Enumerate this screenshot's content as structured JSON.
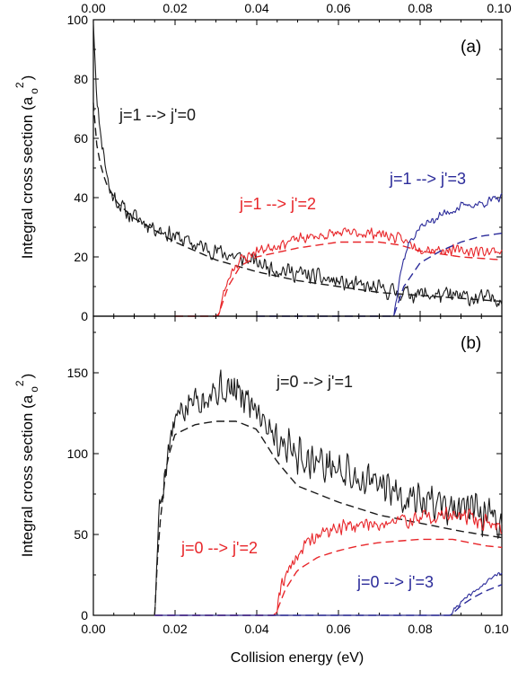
{
  "figure": {
    "xlabel": "Collision energy (eV)",
    "x_ticks": [
      "0.00",
      "0.02",
      "0.04",
      "0.06",
      "0.08",
      "0.10"
    ],
    "top_axis_ticks": [
      "0.00",
      "0.02",
      "0.04",
      "0.06",
      "0.08",
      "0.10"
    ]
  },
  "chart_data": [
    {
      "type": "line",
      "panel_label": "(a)",
      "xlabel": "",
      "ylabel_main": "Integral cross section (a",
      "ylabel_sub": "o",
      "ylabel_sup": "2",
      "ylabel_close": ")",
      "xlim": [
        0.0,
        0.1
      ],
      "ylim": [
        0,
        100
      ],
      "y_ticks": [
        0,
        20,
        40,
        60,
        80,
        100
      ],
      "grid": false,
      "series": [
        {
          "annotation": "j=1 --> j'=0",
          "color": "#1a1a1a",
          "noisy": {
            "x": [
              0.0,
              0.0005,
              0.001,
              0.002,
              0.004,
              0.008,
              0.015,
              0.025,
              0.035,
              0.045,
              0.055,
              0.065,
              0.075,
              0.085,
              0.095,
              0.1
            ],
            "y": [
              100,
              85,
              70,
              60,
              42,
              35,
              30,
              24,
              20,
              16,
              13,
              10,
              8,
              7,
              6,
              6
            ],
            "amplitude": 3.5,
            "seed": 11
          },
          "smooth": {
            "x": [
              0.0,
              0.001,
              0.003,
              0.006,
              0.01,
              0.02,
              0.03,
              0.04,
              0.05,
              0.06,
              0.07,
              0.08,
              0.09,
              0.1
            ],
            "y": [
              72,
              55,
              45,
              38,
              33,
              25,
              19,
              15,
              12,
              10,
              8,
              7,
              6,
              5
            ]
          }
        },
        {
          "annotation": "j=1 --> j'=2",
          "color": "#e8262a",
          "noisy": {
            "x": [
              0.02,
              0.0305,
              0.032,
              0.034,
              0.036,
              0.04,
              0.05,
              0.06,
              0.07,
              0.075,
              0.08,
              0.09,
              0.1
            ],
            "y": [
              0,
              0,
              8,
              16,
              19,
              22,
              26,
              28,
              28,
              26,
              23,
              22,
              22
            ],
            "amplitude": 2.2,
            "seed": 23
          },
          "smooth": {
            "x": [
              0.02,
              0.0305,
              0.033,
              0.036,
              0.04,
              0.05,
              0.06,
              0.07,
              0.075,
              0.08,
              0.09,
              0.1
            ],
            "y": [
              0,
              0,
              10,
              17,
              20,
              23,
              25,
              25,
              24,
              22,
              20,
              19
            ]
          }
        },
        {
          "annotation": "j=1 --> j'=3",
          "color": "#2b2b9a",
          "noisy": {
            "x": [
              0.04,
              0.0735,
              0.075,
              0.077,
              0.08,
              0.085,
              0.09,
              0.095,
              0.1
            ],
            "y": [
              0,
              0,
              14,
              24,
              30,
              34,
              37,
              38,
              40
            ],
            "amplitude": 1.8,
            "seed": 37
          },
          "smooth": {
            "x": [
              0.04,
              0.0735,
              0.076,
              0.08,
              0.085,
              0.09,
              0.095,
              0.1
            ],
            "y": [
              0,
              0,
              10,
              18,
              22,
              25,
              27,
              28
            ]
          }
        }
      ]
    },
    {
      "type": "line",
      "panel_label": "(b)",
      "xlabel": "Collision energy (eV)",
      "ylabel_main": "Integral cross section (a",
      "ylabel_sub": "o",
      "ylabel_sup": "2",
      "ylabel_close": ")",
      "xlim": [
        0.0,
        0.1
      ],
      "ylim": [
        0,
        185
      ],
      "y_ticks": [
        0,
        50,
        100,
        150
      ],
      "grid": false,
      "series": [
        {
          "annotation": "j=0 --> j'=1",
          "color": "#1a1a1a",
          "noisy": {
            "x": [
              0.015,
              0.016,
              0.018,
              0.02,
              0.025,
              0.03,
              0.035,
              0.04,
              0.045,
              0.05,
              0.06,
              0.07,
              0.08,
              0.09,
              0.1
            ],
            "y": [
              0,
              60,
              100,
              120,
              135,
              140,
              138,
              130,
              110,
              100,
              90,
              80,
              72,
              65,
              58
            ],
            "amplitude": 14,
            "seed": 5
          },
          "smooth": {
            "x": [
              0.015,
              0.016,
              0.018,
              0.02,
              0.025,
              0.03,
              0.035,
              0.04,
              0.045,
              0.05,
              0.06,
              0.07,
              0.08,
              0.09,
              0.1
            ],
            "y": [
              0,
              50,
              95,
              112,
              118,
              120,
              120,
              115,
              95,
              80,
              70,
              62,
              57,
              52,
              48
            ]
          }
        },
        {
          "annotation": "j=0 --> j'=2",
          "color": "#e8262a",
          "noisy": {
            "x": [
              0.015,
              0.0445,
              0.046,
              0.05,
              0.055,
              0.06,
              0.065,
              0.07,
              0.075,
              0.08,
              0.085,
              0.09,
              0.095,
              0.1
            ],
            "y": [
              0,
              0,
              20,
              38,
              50,
              54,
              56,
              57,
              58,
              60,
              62,
              62,
              58,
              55
            ],
            "amplitude": 6,
            "seed": 19
          },
          "smooth": {
            "x": [
              0.015,
              0.0445,
              0.047,
              0.05,
              0.055,
              0.06,
              0.065,
              0.07,
              0.075,
              0.08,
              0.085,
              0.088,
              0.092,
              0.096,
              0.1
            ],
            "y": [
              0,
              0,
              16,
              28,
              36,
              40,
              43,
              45,
              46,
              47,
              47,
              47,
              45,
              43,
              42
            ]
          }
        },
        {
          "annotation": "j=0 --> j'=3",
          "color": "#2b2b9a",
          "noisy": {
            "x": [
              0.015,
              0.0875,
              0.089,
              0.092,
              0.095,
              0.098,
              0.1
            ],
            "y": [
              0,
              0,
              6,
              12,
              18,
              24,
              27
            ],
            "amplitude": 1.5,
            "seed": 41
          },
          "smooth": {
            "x": [
              0.015,
              0.0875,
              0.09,
              0.093,
              0.096,
              0.1
            ],
            "y": [
              0,
              0,
              6,
              11,
              15,
              19
            ]
          }
        }
      ]
    }
  ]
}
